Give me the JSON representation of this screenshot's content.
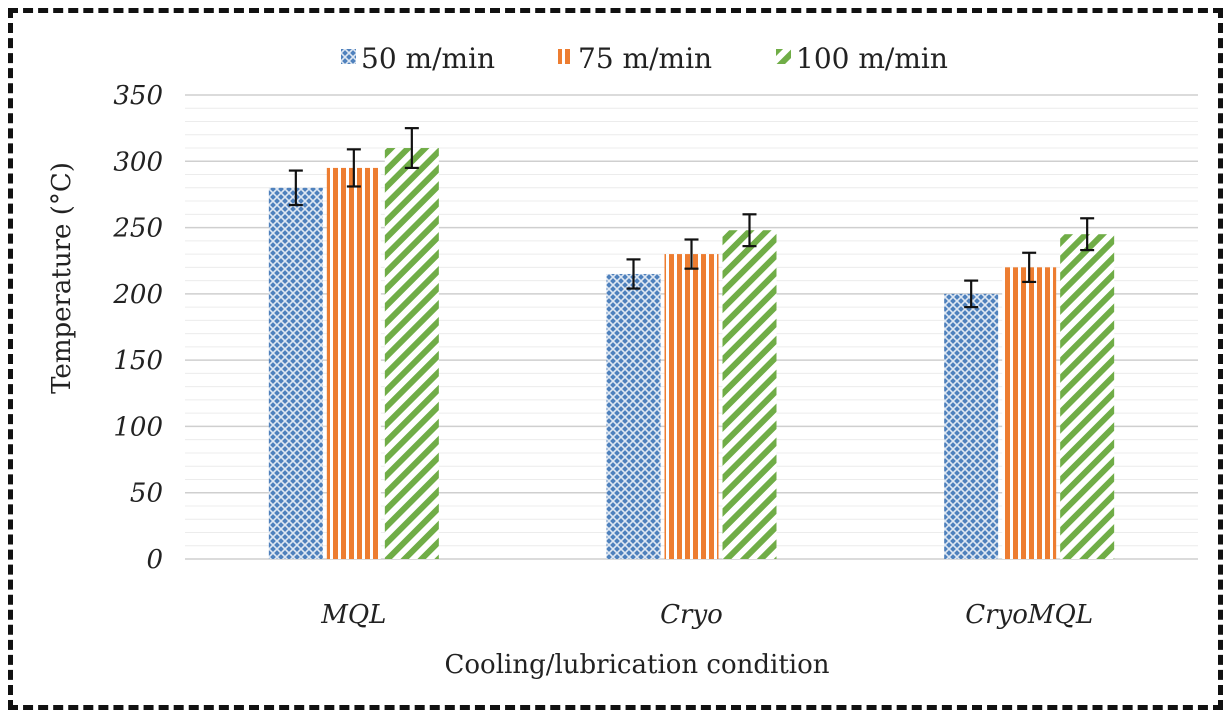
{
  "chart_data": {
    "type": "bar",
    "title": "",
    "xlabel": "Cooling/lubrication condition",
    "ylabel": "Temperature (°C)",
    "categories": [
      "MQL",
      "Cryo",
      "CryoMQL"
    ],
    "ylim": [
      0,
      350
    ],
    "yticks": [
      0,
      50,
      100,
      150,
      200,
      250,
      300,
      350
    ],
    "grid": true,
    "legend_position": "top",
    "series": [
      {
        "name": "50 m/min",
        "values": [
          280,
          215,
          200
        ],
        "errors": [
          13,
          11,
          10
        ],
        "color": "#4f81bd",
        "pattern": "crosshatch"
      },
      {
        "name": "75 m/min",
        "values": [
          295,
          230,
          220
        ],
        "errors": [
          14,
          11,
          11
        ],
        "color": "#ed7d31",
        "pattern": "vertical-stripes"
      },
      {
        "name": "100 m/min",
        "values": [
          310,
          248,
          245
        ],
        "errors": [
          15,
          12,
          12
        ],
        "color": "#70ad47",
        "pattern": "diagonal-stripes"
      }
    ]
  }
}
